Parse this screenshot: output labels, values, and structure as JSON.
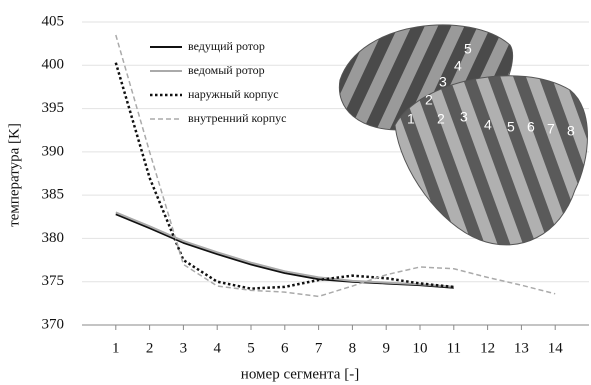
{
  "chart_data": {
    "type": "line",
    "x_label": "номер сегмента [-]",
    "y_label": "температура [K]",
    "x": [
      1,
      2,
      3,
      4,
      5,
      6,
      7,
      8,
      9,
      10,
      11,
      12,
      13,
      14
    ],
    "xlim": [
      0,
      15
    ],
    "xticks": [
      1,
      2,
      3,
      4,
      5,
      6,
      7,
      8,
      9,
      10,
      11,
      12,
      13,
      14
    ],
    "ylim": [
      370,
      405
    ],
    "yticks": [
      370,
      375,
      380,
      385,
      390,
      395,
      400,
      405
    ],
    "grid": true,
    "legend": "top-left",
    "series": [
      {
        "name": "ведущий ротор",
        "color": "#111111",
        "style": "solid",
        "width": 2,
        "values": [
          382.8,
          381.2,
          379.5,
          378.2,
          377,
          376,
          375.3,
          375,
          374.8,
          374.6,
          374.3,
          null,
          null,
          null
        ]
      },
      {
        "name": "ведомый ротор",
        "color": "#aaaaaa",
        "style": "solid",
        "width": 2,
        "values": [
          383,
          381.4,
          379.7,
          378.4,
          377.2,
          376.2,
          375.5,
          375.1,
          374.9,
          374.7,
          374.4,
          null,
          null,
          null
        ]
      },
      {
        "name": "наружный корпус",
        "color": "#111111",
        "style": "dotted",
        "width": 2.5,
        "values": [
          400.3,
          387,
          377.5,
          375,
          374.2,
          374.4,
          375.2,
          375.7,
          375.4,
          374.8,
          374.4,
          null,
          null,
          null
        ]
      },
      {
        "name": "внутренний корпус",
        "color": "#aaaaaa",
        "style": "dashed",
        "width": 1.5,
        "values": [
          403.5,
          390,
          377,
          374.5,
          374,
          373.8,
          373.3,
          374.5,
          375.8,
          376.7,
          376.5,
          375.5,
          374.6,
          373.6
        ]
      }
    ]
  },
  "illustration": {
    "back_labels": [
      "2",
      "3",
      "4",
      "5"
    ],
    "front_labels": [
      "1",
      "2",
      "3",
      "4",
      "5",
      "6",
      "7",
      "8"
    ]
  }
}
